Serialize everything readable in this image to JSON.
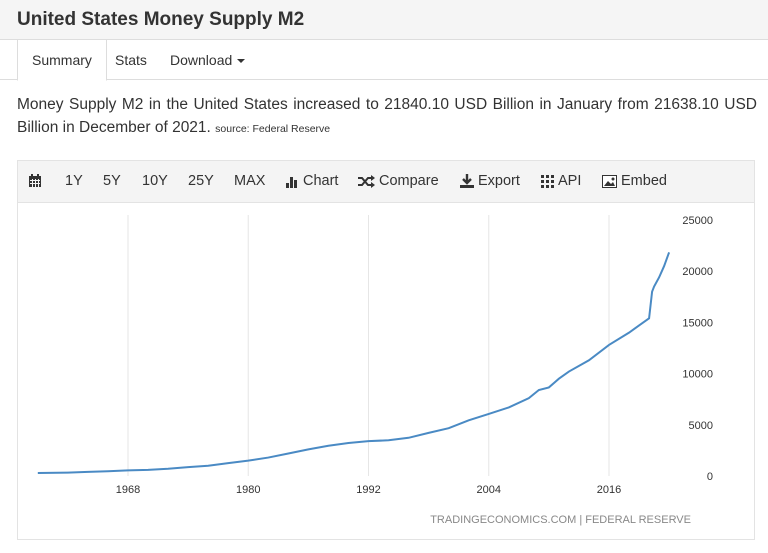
{
  "header": {
    "title": "United States Money Supply M2"
  },
  "tabs": [
    {
      "label": "Summary",
      "active": true
    },
    {
      "label": "Stats"
    },
    {
      "label": "Download"
    }
  ],
  "description": {
    "text": "Money Supply M2 in the United States increased to 21840.10 USD Billion in January from 21638.10 USD Billion in December of 2021.",
    "source": "source: Federal Reserve"
  },
  "toolbar": {
    "ranges": [
      "1Y",
      "5Y",
      "10Y",
      "25Y",
      "MAX"
    ],
    "chart": "Chart",
    "compare": "Compare",
    "export": "Export",
    "api": "API",
    "embed": "Embed"
  },
  "chart_data": {
    "type": "line",
    "title": "",
    "xlabel": "",
    "ylabel": "",
    "x_ticks": [
      "1968",
      "1980",
      "1992",
      "2004",
      "2016"
    ],
    "y_ticks": [
      "0",
      "5000",
      "10000",
      "15000",
      "20000",
      "25000"
    ],
    "ylim": [
      0,
      25000
    ],
    "xlim": [
      1955,
      2024
    ],
    "grid": "vertical",
    "color": "#4a8ac4",
    "series": [
      {
        "x": [
          1959,
          1960,
          1962,
          1964,
          1966,
          1968,
          1970,
          1972,
          1974,
          1976,
          1978,
          1980,
          1982,
          1984,
          1986,
          1988,
          1990,
          1992,
          1994,
          1996,
          1998,
          2000,
          2002,
          2004,
          2006,
          2008,
          2009,
          2010,
          2011,
          2012,
          2014,
          2016,
          2018,
          2019,
          2020,
          2020.3,
          2020.5,
          2021,
          2021.5,
          2021.92,
          2022.0
        ],
        "y": [
          287,
          300,
          335,
          400,
          460,
          550,
          600,
          710,
          870,
          1000,
          1260,
          1500,
          1800,
          2200,
          2600,
          2950,
          3220,
          3400,
          3490,
          3730,
          4210,
          4670,
          5440,
          6060,
          6700,
          7600,
          8400,
          8650,
          9500,
          10200,
          11300,
          12800,
          14000,
          14700,
          15400,
          18000,
          18500,
          19400,
          20500,
          21638.1,
          21840.1
        ]
      }
    ],
    "credit": "TRADINGECONOMICS.COM | FEDERAL RESERVE"
  }
}
